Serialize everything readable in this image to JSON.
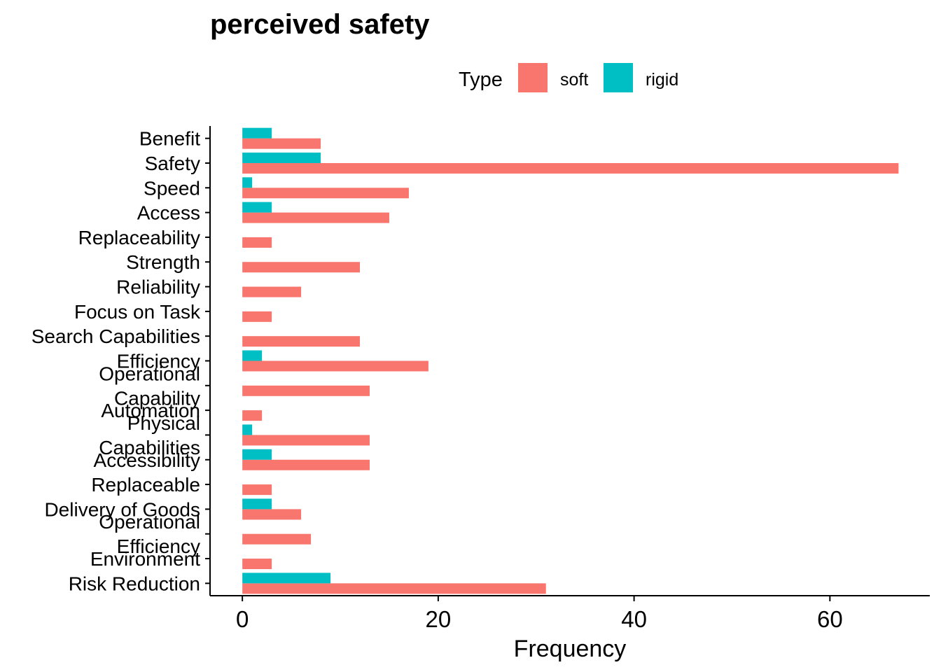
{
  "chart_data": {
    "type": "bar",
    "orientation": "horizontal",
    "title": "perceived safety",
    "xlabel": "Frequency",
    "ylabel": "",
    "xlim": [
      -3.3,
      70.2
    ],
    "xticks": [
      0,
      20,
      40,
      60
    ],
    "grid": false,
    "legend": {
      "title": "Type",
      "placement": "top"
    },
    "categories": [
      "Benefit",
      "Safety",
      "Speed",
      "Access",
      "Replaceability",
      "Strength",
      "Reliability",
      "Focus on Task",
      "Search Capabilities",
      "Efficiency",
      "Operational\nCapability",
      "Automation",
      "Physical\nCapabilities",
      "Accessibility",
      "Replaceable",
      "Delivery of Goods",
      "Operational\nEfficiency",
      "Environment",
      "Risk Reduction"
    ],
    "series": [
      {
        "name": "soft",
        "color": "#F8766D",
        "values": [
          8,
          67,
          17,
          15,
          3,
          12,
          6,
          3,
          12,
          19,
          13,
          2,
          13,
          13,
          3,
          6,
          7,
          3,
          31
        ]
      },
      {
        "name": "rigid",
        "color": "#00BFC4",
        "values": [
          3,
          8,
          1,
          3,
          0,
          0,
          0,
          0,
          0,
          2,
          0,
          0,
          1,
          3,
          0,
          3,
          0,
          0,
          9
        ]
      }
    ]
  }
}
